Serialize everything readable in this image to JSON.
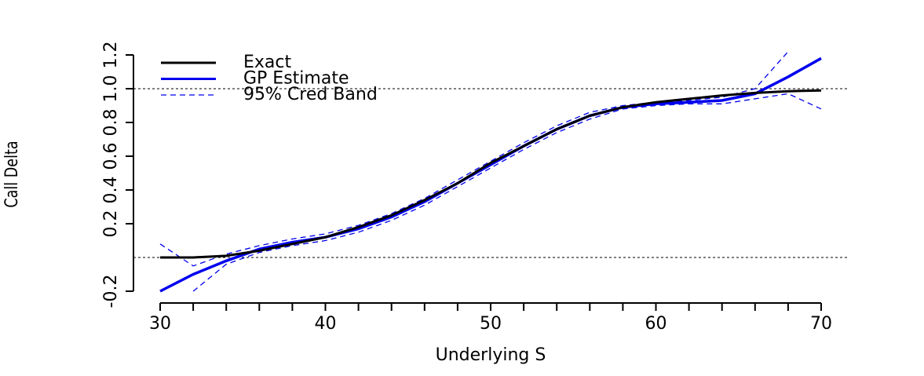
{
  "chart_data": {
    "type": "line",
    "xlabel": "Underlying S",
    "ylabel": "Call Delta",
    "x": [
      30,
      32,
      34,
      36,
      38,
      40,
      42,
      44,
      46,
      48,
      50,
      52,
      54,
      56,
      58,
      60,
      62,
      64,
      66,
      68,
      70
    ],
    "series": [
      {
        "name": "Exact",
        "color": "#000000",
        "style": "solid",
        "values": [
          0.0,
          0.0,
          0.01,
          0.04,
          0.08,
          0.12,
          0.18,
          0.25,
          0.34,
          0.44,
          0.56,
          0.66,
          0.76,
          0.84,
          0.89,
          0.92,
          0.94,
          0.96,
          0.975,
          0.985,
          0.99
        ]
      },
      {
        "name": "GP Estimate",
        "color": "#0000ee",
        "style": "solid",
        "values": [
          -0.2,
          -0.1,
          -0.02,
          0.05,
          0.09,
          0.12,
          0.17,
          0.24,
          0.33,
          0.44,
          0.55,
          0.66,
          0.76,
          0.84,
          0.89,
          0.91,
          0.92,
          0.93,
          0.97,
          1.07,
          1.18
        ]
      },
      {
        "name": "95% Cred Band",
        "color": "#0000ee",
        "style": "dashed",
        "values": [
          0.08,
          -0.05,
          0.02,
          0.07,
          0.11,
          0.14,
          0.19,
          0.26,
          0.35,
          0.46,
          0.57,
          0.68,
          0.78,
          0.86,
          0.9,
          0.92,
          0.93,
          0.95,
          1.0,
          1.22,
          null
        ],
        "lower": [
          null,
          -0.2,
          -0.04,
          0.03,
          0.07,
          0.1,
          0.15,
          0.22,
          0.31,
          0.42,
          0.53,
          0.64,
          0.74,
          0.82,
          0.88,
          0.9,
          0.91,
          0.91,
          0.94,
          0.97,
          0.88
        ]
      }
    ],
    "hlines": [
      0,
      1
    ],
    "xlim": [
      30,
      70
    ],
    "xticks": [
      30,
      40,
      50,
      60,
      70
    ],
    "xminorticks": [
      32,
      34,
      36,
      38,
      42,
      44,
      46,
      48,
      52,
      54,
      56,
      58,
      62,
      64,
      66,
      68
    ],
    "ylim": [
      -0.2,
      1.2
    ],
    "yticks": [
      -0.2,
      0.2,
      0.4,
      0.6,
      {
        "value": 0.8,
        "label": "0.8"
      },
      {
        "value": 1,
        "label": "1.0"
      },
      {
        "value": 1.2,
        "label": "1.2"
      }
    ],
    "legend": "top-left"
  }
}
